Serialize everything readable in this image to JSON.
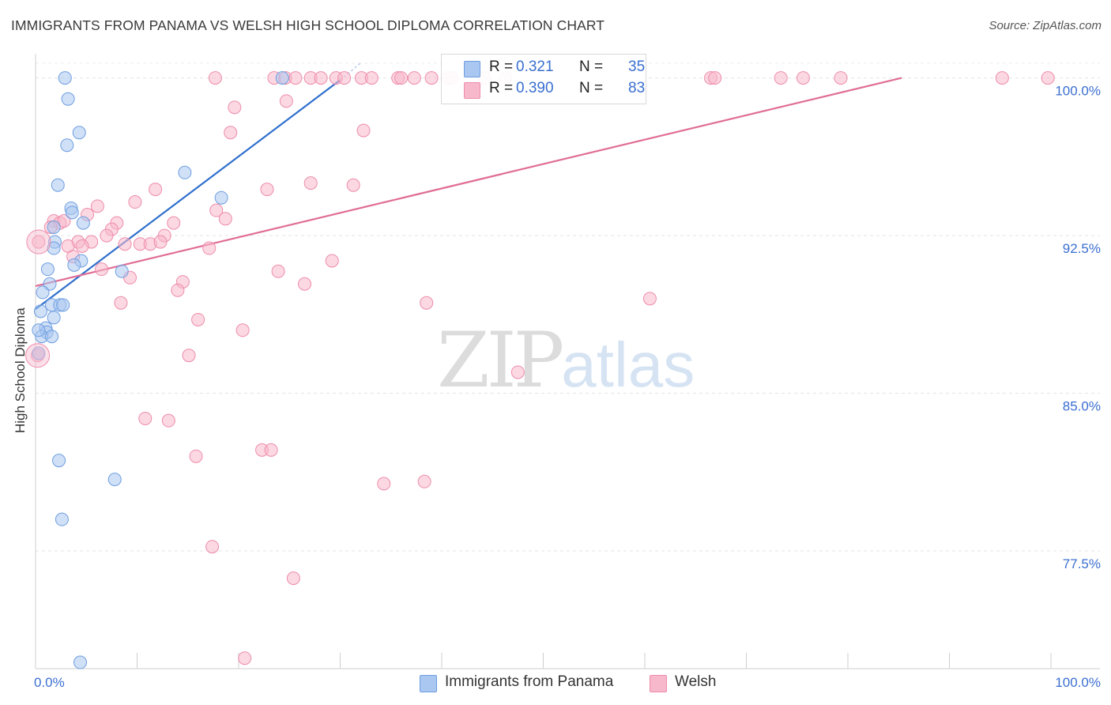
{
  "title": "IMMIGRANTS FROM PANAMA VS WELSH HIGH SCHOOL DIPLOMA CORRELATION CHART",
  "source": "Source: ZipAtlas.com",
  "watermark": {
    "zip": "ZIP",
    "atlas": "atlas"
  },
  "legend": {
    "series": [
      {
        "name": "Immigrants from Panama",
        "r_label": "R =",
        "r_value": "0.321",
        "n_label": "N =",
        "n_value": "35",
        "fill": "#a9c7f0",
        "stroke": "#6e9ee0"
      },
      {
        "name": "Welsh",
        "r_label": "R =",
        "r_value": "0.390",
        "n_label": "N =",
        "n_value": "83",
        "fill": "#f7b8cb",
        "stroke": "#ee8cab"
      }
    ]
  },
  "chart_data": {
    "type": "scatter",
    "title": "IMMIGRANTS FROM PANAMA VS WELSH HIGH SCHOOL DIPLOMA CORRELATION CHART",
    "xlabel": "",
    "ylabel": "High School Diploma",
    "xlim": [
      0,
      100
    ],
    "ylim": [
      71.9,
      101.0
    ],
    "x_tick_labels": [
      "0.0%",
      "100.0%"
    ],
    "y_ticks": [
      77.5,
      85.0,
      92.5,
      100.0
    ],
    "y_tick_labels": [
      "77.5%",
      "85.0%",
      "92.5%",
      "100.0%"
    ],
    "grid": true,
    "series": [
      {
        "name": "Immigrants from Panama",
        "color": "#6e9ee0",
        "fill": "#a9c7f0",
        "line_color": "#2f6fcc",
        "trend": {
          "x0": 0.0,
          "y0": 89.0,
          "x1": 30.0,
          "y1": 99.9
        },
        "points": [
          {
            "x": 2.9,
            "y": 100.0
          },
          {
            "x": 24.3,
            "y": 100.0
          },
          {
            "x": 3.2,
            "y": 99.0
          },
          {
            "x": 4.3,
            "y": 97.4
          },
          {
            "x": 3.1,
            "y": 96.8
          },
          {
            "x": 14.7,
            "y": 95.5
          },
          {
            "x": 2.2,
            "y": 94.9
          },
          {
            "x": 18.3,
            "y": 94.3
          },
          {
            "x": 3.5,
            "y": 93.8
          },
          {
            "x": 3.6,
            "y": 93.6
          },
          {
            "x": 1.8,
            "y": 92.9
          },
          {
            "x": 4.7,
            "y": 93.1
          },
          {
            "x": 1.9,
            "y": 92.2
          },
          {
            "x": 1.8,
            "y": 91.9
          },
          {
            "x": 4.5,
            "y": 91.3
          },
          {
            "x": 3.8,
            "y": 91.1
          },
          {
            "x": 1.2,
            "y": 90.9
          },
          {
            "x": 8.5,
            "y": 90.8
          },
          {
            "x": 1.4,
            "y": 90.2
          },
          {
            "x": 0.7,
            "y": 89.8
          },
          {
            "x": 1.6,
            "y": 89.2
          },
          {
            "x": 2.4,
            "y": 89.2
          },
          {
            "x": 2.7,
            "y": 89.2
          },
          {
            "x": 0.5,
            "y": 88.9
          },
          {
            "x": 1.8,
            "y": 88.6
          },
          {
            "x": 1.0,
            "y": 88.1
          },
          {
            "x": 1.1,
            "y": 87.9
          },
          {
            "x": 0.6,
            "y": 87.7
          },
          {
            "x": 1.6,
            "y": 87.7
          },
          {
            "x": 0.3,
            "y": 86.9
          },
          {
            "x": 2.3,
            "y": 81.8
          },
          {
            "x": 7.8,
            "y": 80.9
          },
          {
            "x": 2.6,
            "y": 79.0
          },
          {
            "x": 4.4,
            "y": 72.2
          },
          {
            "x": 0.3,
            "y": 88.0
          }
        ]
      },
      {
        "name": "Welsh",
        "color": "#ee8cab",
        "fill": "#f7b8cb",
        "line_color": "#e06d96",
        "trend": {
          "x0": 0.0,
          "y0": 90.1,
          "x1": 85.3,
          "y1": 100.0
        },
        "points": [
          {
            "x": 23.5,
            "y": 100.0
          },
          {
            "x": 24.6,
            "y": 100.0
          },
          {
            "x": 25.6,
            "y": 100.0
          },
          {
            "x": 27.1,
            "y": 100.0
          },
          {
            "x": 28.1,
            "y": 100.0
          },
          {
            "x": 29.6,
            "y": 100.0
          },
          {
            "x": 30.4,
            "y": 100.0
          },
          {
            "x": 32.1,
            "y": 100.0
          },
          {
            "x": 33.1,
            "y": 100.0
          },
          {
            "x": 35.7,
            "y": 100.0
          },
          {
            "x": 36.0,
            "y": 100.0
          },
          {
            "x": 37.3,
            "y": 100.0
          },
          {
            "x": 39.0,
            "y": 100.0
          },
          {
            "x": 40.6,
            "y": 100.0
          },
          {
            "x": 41.0,
            "y": 100.0
          },
          {
            "x": 44.2,
            "y": 100.0
          },
          {
            "x": 46.3,
            "y": 100.0
          },
          {
            "x": 66.5,
            "y": 100.0
          },
          {
            "x": 66.9,
            "y": 100.0
          },
          {
            "x": 73.4,
            "y": 100.0
          },
          {
            "x": 75.6,
            "y": 100.0
          },
          {
            "x": 79.3,
            "y": 100.0
          },
          {
            "x": 95.2,
            "y": 100.0
          },
          {
            "x": 99.7,
            "y": 100.0
          },
          {
            "x": 24.7,
            "y": 98.9
          },
          {
            "x": 19.6,
            "y": 98.6
          },
          {
            "x": 19.2,
            "y": 97.4
          },
          {
            "x": 32.3,
            "y": 97.5
          },
          {
            "x": 27.1,
            "y": 95.0
          },
          {
            "x": 31.3,
            "y": 94.9
          },
          {
            "x": 11.8,
            "y": 94.7
          },
          {
            "x": 22.8,
            "y": 94.7
          },
          {
            "x": 9.8,
            "y": 94.1
          },
          {
            "x": 6.1,
            "y": 93.9
          },
          {
            "x": 17.8,
            "y": 93.7
          },
          {
            "x": 5.1,
            "y": 93.5
          },
          {
            "x": 1.8,
            "y": 93.2
          },
          {
            "x": 2.4,
            "y": 93.1
          },
          {
            "x": 2.8,
            "y": 93.2
          },
          {
            "x": 8.0,
            "y": 93.1
          },
          {
            "x": 18.7,
            "y": 93.3
          },
          {
            "x": 13.6,
            "y": 93.1
          },
          {
            "x": 1.5,
            "y": 92.9
          },
          {
            "x": 7.5,
            "y": 92.8
          },
          {
            "x": 7.0,
            "y": 92.5
          },
          {
            "x": 12.7,
            "y": 92.5
          },
          {
            "x": 4.2,
            "y": 92.2
          },
          {
            "x": 5.5,
            "y": 92.2
          },
          {
            "x": 10.3,
            "y": 92.1
          },
          {
            "x": 8.8,
            "y": 92.1
          },
          {
            "x": 11.3,
            "y": 92.1
          },
          {
            "x": 12.3,
            "y": 92.2
          },
          {
            "x": 3.2,
            "y": 92.0
          },
          {
            "x": 4.6,
            "y": 92.0
          },
          {
            "x": 17.1,
            "y": 91.9
          },
          {
            "x": 0.3,
            "y": 92.2
          },
          {
            "x": 3.7,
            "y": 91.5
          },
          {
            "x": 29.2,
            "y": 91.3
          },
          {
            "x": 6.5,
            "y": 90.9
          },
          {
            "x": 23.9,
            "y": 90.8
          },
          {
            "x": 9.3,
            "y": 90.5
          },
          {
            "x": 14.5,
            "y": 90.3
          },
          {
            "x": 26.5,
            "y": 90.2
          },
          {
            "x": 14.0,
            "y": 89.9
          },
          {
            "x": 60.5,
            "y": 89.5
          },
          {
            "x": 8.4,
            "y": 89.3
          },
          {
            "x": 38.5,
            "y": 89.3
          },
          {
            "x": 16.0,
            "y": 88.5
          },
          {
            "x": 20.4,
            "y": 88.0
          },
          {
            "x": 15.1,
            "y": 86.8
          },
          {
            "x": 0.2,
            "y": 86.8
          },
          {
            "x": 47.5,
            "y": 86.0
          },
          {
            "x": 10.8,
            "y": 83.8
          },
          {
            "x": 13.1,
            "y": 83.7
          },
          {
            "x": 22.3,
            "y": 82.3
          },
          {
            "x": 23.2,
            "y": 82.3
          },
          {
            "x": 15.8,
            "y": 82.0
          },
          {
            "x": 34.3,
            "y": 80.7
          },
          {
            "x": 38.3,
            "y": 80.8
          },
          {
            "x": 17.4,
            "y": 77.7
          },
          {
            "x": 25.4,
            "y": 76.2
          },
          {
            "x": 20.6,
            "y": 72.4
          },
          {
            "x": 17.7,
            "y": 100.0
          }
        ]
      }
    ]
  }
}
